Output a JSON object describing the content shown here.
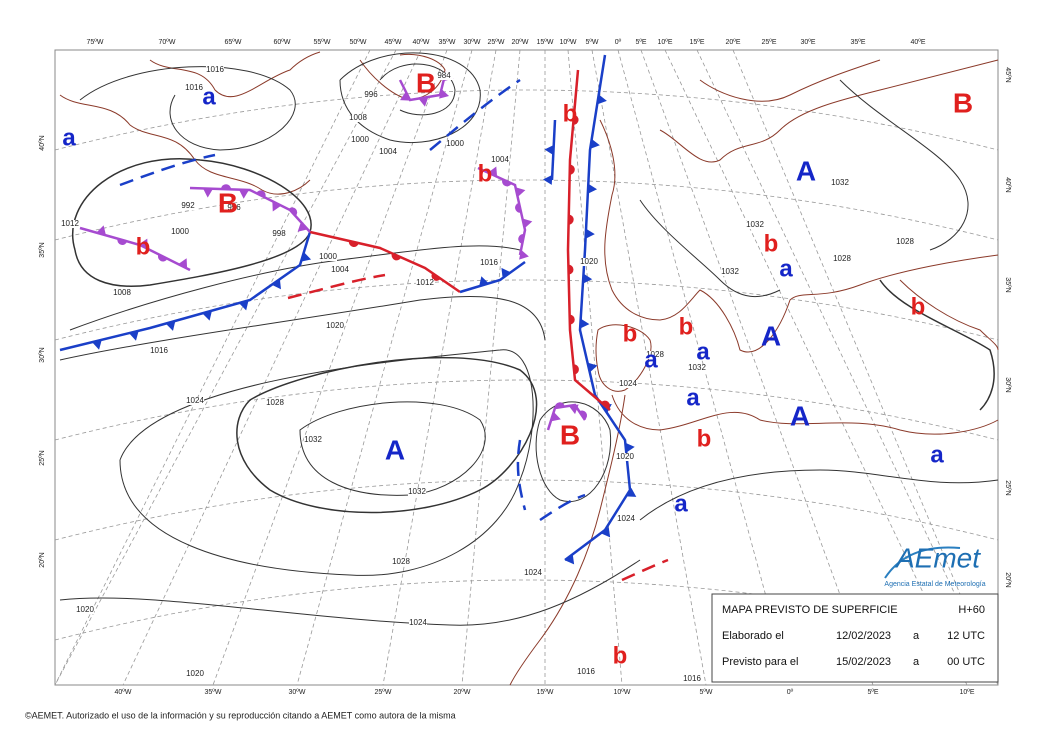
{
  "map": {
    "top_lon_labels": [
      "75ºW",
      "70ºW",
      "65ºW",
      "60ºW",
      "55ºW",
      "50ºW",
      "45ºW",
      "40ºW",
      "35ºW",
      "30ºW",
      "25ºW",
      "20ºW",
      "15ºW",
      "10ºW",
      "5ºW",
      "0º",
      "5ºE",
      "10ºE",
      "15ºE",
      "20ºE",
      "25ºE",
      "30ºE",
      "35ºE",
      "40ºE"
    ],
    "bottom_lon_labels": [
      "40ºW",
      "35ºW",
      "30ºW",
      "25ºW",
      "20ºW",
      "15ºW",
      "10ºW",
      "5ºW",
      "0º",
      "5ºE",
      "10ºE"
    ],
    "left_lat_labels": [
      "40ºN",
      "35ºN",
      "30ºN",
      "25ºN",
      "20ºN"
    ],
    "right_lat_labels": [
      "45ºN",
      "40ºN",
      "35ºN",
      "30ºN",
      "25ºN",
      "20ºN"
    ],
    "pressure_centers": [
      "B",
      "B",
      "b",
      "b",
      "b",
      "B",
      "b",
      "b",
      "b",
      "b",
      "b",
      "B",
      "b",
      "a",
      "a",
      "A",
      "a",
      "A",
      "a",
      "a",
      "a",
      "A",
      "a",
      "a",
      "A"
    ],
    "isobar_labels": [
      "1016",
      "1016",
      "1008",
      "1000",
      "1004",
      "996",
      "984",
      "1000",
      "992",
      "996",
      "1000",
      "998",
      "1000",
      "1004",
      "1012",
      "1016",
      "1020",
      "1004",
      "1012",
      "1008",
      "1016",
      "1020",
      "1024",
      "1028",
      "1032",
      "1032",
      "1028",
      "1024",
      "1020",
      "1024",
      "1020",
      "1016",
      "1016",
      "1024",
      "1020",
      "1024",
      "1028",
      "1032",
      "1032",
      "1032",
      "1032",
      "1028",
      "1028"
    ]
  },
  "info_box": {
    "title": "MAPA PREVISTO DE SUPERFICIE",
    "lead": "H+60",
    "rows": [
      [
        "Elaborado el",
        "12/02/2023",
        "a",
        "12 UTC"
      ],
      [
        "Previsto para el",
        "15/02/2023",
        "a",
        "00 UTC"
      ]
    ]
  },
  "logo": {
    "name": "AEmet",
    "subtitle": "Agencia Estatal de Meteorología"
  },
  "copyright": "©AEMET. Autorizado el uso de la información y su reproducción citando a AEMET como autora de la misma"
}
